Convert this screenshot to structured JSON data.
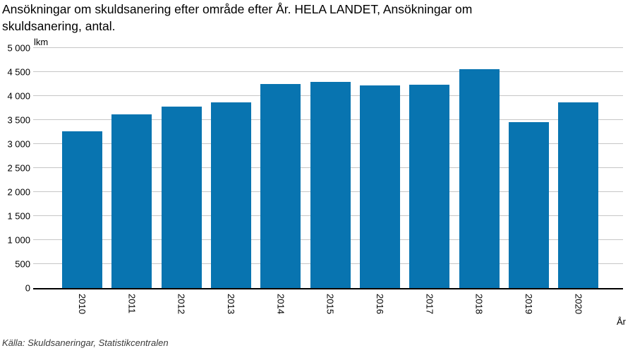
{
  "header": {
    "title": "Ansökningar om skuldsanering efter område efter År. HELA LANDET, Ansökningar om\nskuldsanering, antal."
  },
  "footer": {
    "source": "Källa: Skuldsaneringar, Statistikcentralen"
  },
  "chart_data": {
    "type": "bar",
    "title": "Ansökningar om skuldsanering efter område efter År. HELA LANDET, Ansökningar om skuldsanering, antal.",
    "categories": [
      "2010",
      "2011",
      "2012",
      "2013",
      "2014",
      "2015",
      "2016",
      "2017",
      "2018",
      "2019",
      "2020"
    ],
    "values": [
      3270,
      3620,
      3780,
      3870,
      4250,
      4290,
      4220,
      4230,
      4560,
      3450,
      3870
    ],
    "xlabel": "År",
    "ylabel": "lkm",
    "ylim": [
      0,
      5000
    ],
    "yticks": [
      0,
      500,
      1000,
      1500,
      2000,
      2500,
      3000,
      3500,
      4000,
      4500,
      5000
    ],
    "ytick_labels": [
      "0",
      "500",
      "1 000",
      "1 500",
      "2 000",
      "2 500",
      "3 000",
      "3 500",
      "4 000",
      "4 500",
      "5 000"
    ],
    "grid": "horizontal",
    "legend": "none",
    "bar_color": "#0874b0",
    "grid_color": "#c6c6c6",
    "axis_color": "#000000"
  }
}
